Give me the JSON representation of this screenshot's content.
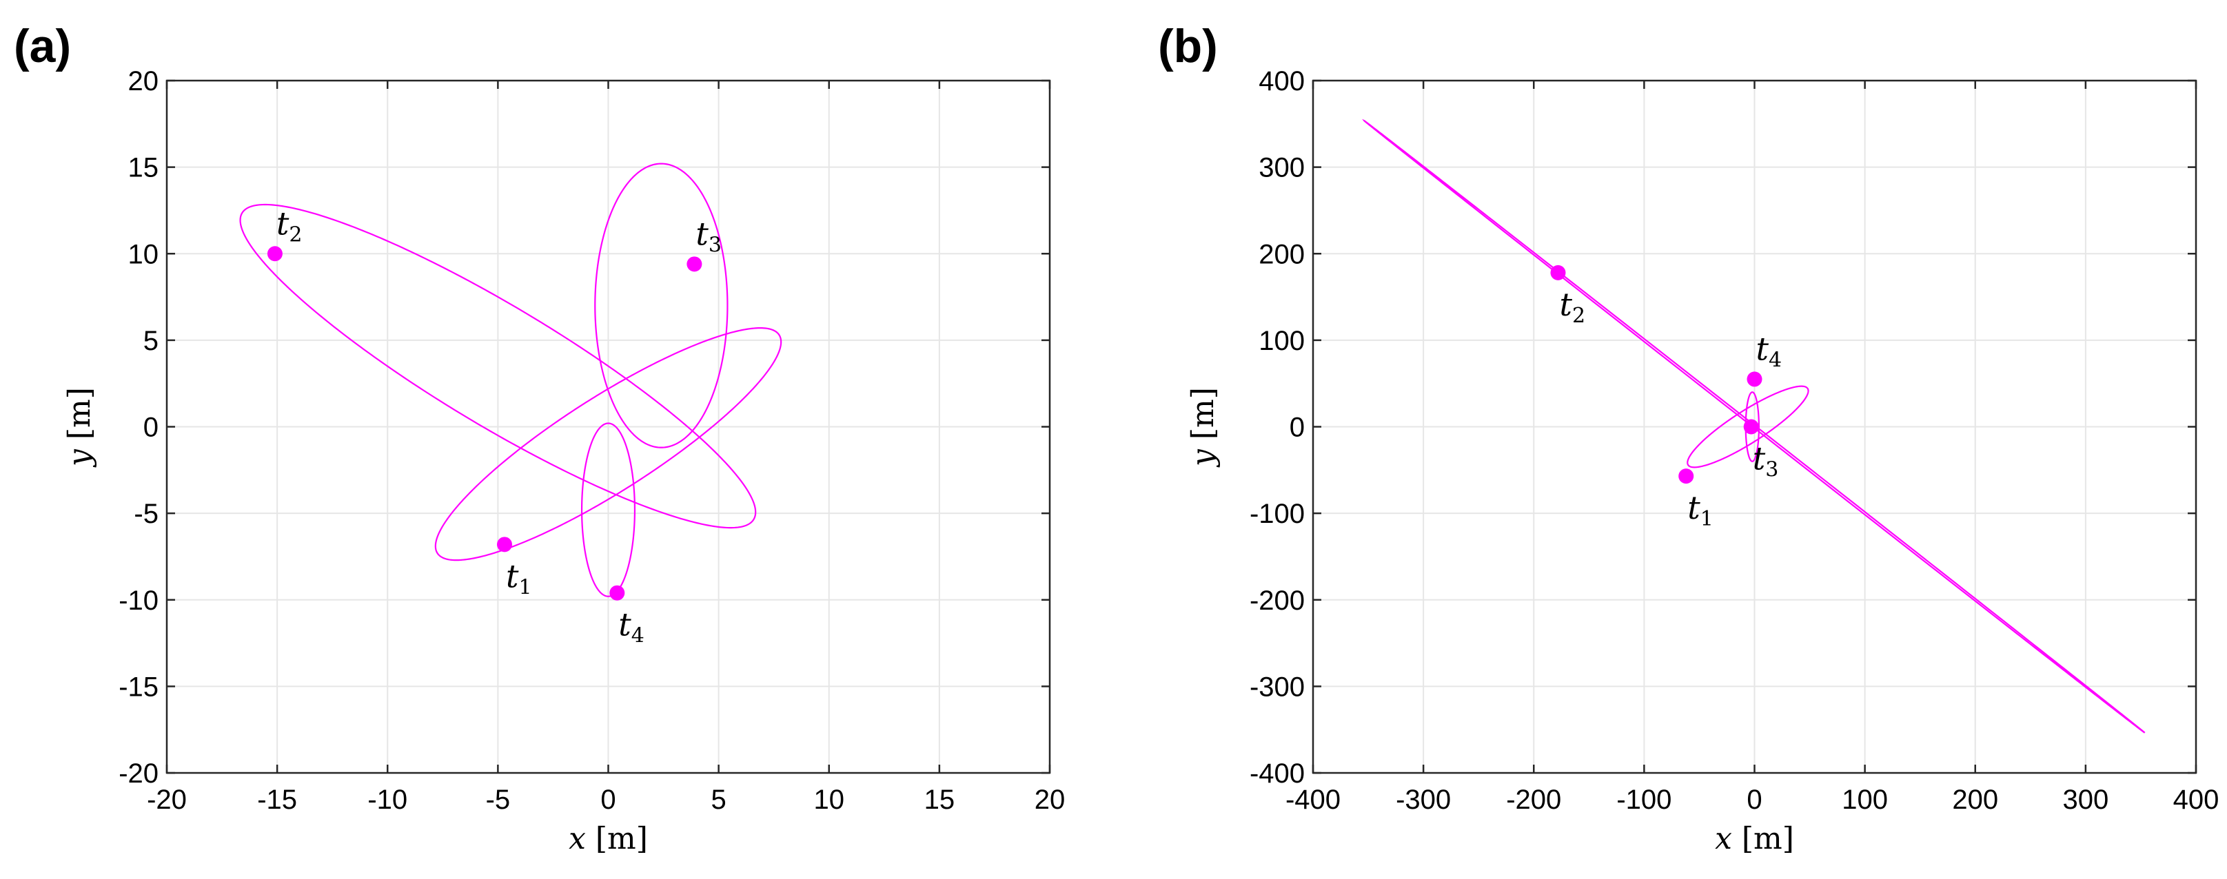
{
  "chart_data": [
    {
      "panel_label": "(a)",
      "type": "line",
      "xlabel_var": "x",
      "xlabel_unit": "[m]",
      "ylabel_var": "y",
      "ylabel_unit": "[m]",
      "xlim": [
        -20,
        20
      ],
      "ylim": [
        -20,
        20
      ],
      "xticks": [
        -20,
        -15,
        -10,
        -5,
        0,
        5,
        10,
        15,
        20
      ],
      "yticks": [
        -20,
        -15,
        -10,
        -5,
        0,
        5,
        10,
        15,
        20
      ],
      "grid": true,
      "color": "#ff00ff",
      "curves": [
        {
          "cx": -5.0,
          "cy": 3.5,
          "rx": 14.6,
          "ry": 3.2,
          "angle_deg": -38
        },
        {
          "cx": 0.0,
          "cy": -1.0,
          "rx": 10.0,
          "ry": 2.5,
          "angle_deg": 40
        },
        {
          "cx": 2.4,
          "cy": 7.0,
          "rx": 8.2,
          "ry": 3.0,
          "angle_deg": 90
        },
        {
          "cx": 0.0,
          "cy": -4.8,
          "rx": 5.0,
          "ry": 1.2,
          "angle_deg": 90
        }
      ],
      "points": [
        {
          "label": "t",
          "sub": "1",
          "x": -4.7,
          "y": -6.8,
          "label_pos": "below"
        },
        {
          "label": "t",
          "sub": "2",
          "x": -15.1,
          "y": 10.0,
          "label_pos": "above"
        },
        {
          "label": "t",
          "sub": "3",
          "x": 3.9,
          "y": 9.4,
          "label_pos": "above"
        },
        {
          "label": "t",
          "sub": "4",
          "x": 0.4,
          "y": -9.6,
          "label_pos": "below"
        }
      ]
    },
    {
      "panel_label": "(b)",
      "type": "line",
      "xlabel_var": "x",
      "xlabel_unit": "[m]",
      "ylabel_var": "y",
      "ylabel_unit": "[m]",
      "xlim": [
        -400,
        400
      ],
      "ylim": [
        -400,
        400
      ],
      "xticks": [
        -400,
        -300,
        -200,
        -100,
        0,
        100,
        200,
        300,
        400
      ],
      "yticks": [
        -400,
        -300,
        -200,
        -100,
        0,
        100,
        200,
        300,
        400
      ],
      "grid": true,
      "color": "#ff00ff",
      "curves": [
        {
          "cx": 0.0,
          "cy": 0.0,
          "rx": 500.0,
          "ry": 1.2,
          "angle_deg": -45
        },
        {
          "cx": -6.0,
          "cy": 0.0,
          "rx": 70.0,
          "ry": 17.0,
          "angle_deg": 40
        },
        {
          "cx": -2.0,
          "cy": 0.0,
          "rx": 40.0,
          "ry": 6.0,
          "angle_deg": 90
        }
      ],
      "points": [
        {
          "label": "t",
          "sub": "1",
          "x": -62,
          "y": -57,
          "label_pos": "below"
        },
        {
          "label": "t",
          "sub": "2",
          "x": -178,
          "y": 178,
          "label_pos": "below"
        },
        {
          "label": "t",
          "sub": "3",
          "x": -3,
          "y": 0,
          "label_pos": "below"
        },
        {
          "label": "t",
          "sub": "4",
          "x": 0,
          "y": 55,
          "label_pos": "above"
        }
      ]
    }
  ]
}
